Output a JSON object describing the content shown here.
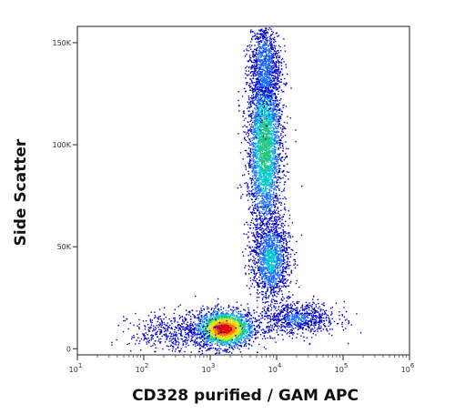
{
  "chart_data": {
    "type": "scatter",
    "subtype": "flow-cytometry-density-dot-plot",
    "xlabel": "CD328 purified / GAM APC",
    "ylabel": "Side Scatter",
    "x_scale": "log",
    "xlim": [
      10,
      1000000
    ],
    "ylim": [
      -3000,
      158000
    ],
    "x_ticks": [
      {
        "value": 10,
        "base": "10",
        "exp": "1"
      },
      {
        "value": 100,
        "base": "10",
        "exp": "2"
      },
      {
        "value": 1000,
        "base": "10",
        "exp": "3"
      },
      {
        "value": 10000,
        "base": "10",
        "exp": "4"
      },
      {
        "value": 100000,
        "base": "10",
        "exp": "5"
      },
      {
        "value": 1000000,
        "base": "10",
        "exp": "6"
      }
    ],
    "y_ticks": [
      {
        "value": 0,
        "label": "0"
      },
      {
        "value": 50000,
        "label": "50K"
      },
      {
        "value": 100000,
        "label": "100K"
      },
      {
        "value": 150000,
        "label": "150K"
      }
    ],
    "grid": false,
    "legend": "none",
    "density_colors": [
      "#0000cc",
      "#1f6fff",
      "#00c8d2",
      "#22c47a",
      "#b8ee22",
      "#ffd400",
      "#ff7a00",
      "#e80000"
    ],
    "populations": [
      {
        "x_center": 1600,
        "y_center": 10000,
        "x_spread_decades": 0.22,
        "y_spread": 4500,
        "count": 2200,
        "peak_density": 1.0
      },
      {
        "x_center": 6500,
        "y_center": 100000,
        "x_spread_decades": 0.13,
        "y_spread": 22000,
        "count": 3200,
        "peak_density": 0.45
      },
      {
        "x_center": 8000,
        "y_center": 44000,
        "x_spread_decades": 0.14,
        "y_spread": 10000,
        "count": 1400,
        "peak_density": 0.3
      },
      {
        "x_center": 6500,
        "y_center": 140000,
        "x_spread_decades": 0.12,
        "y_spread": 12000,
        "count": 900,
        "peak_density": 0.2
      },
      {
        "x_center": 20000,
        "y_center": 15000,
        "x_spread_decades": 0.3,
        "y_spread": 4000,
        "count": 800,
        "peak_density": 0.15
      },
      {
        "x_center": 300,
        "y_center": 8000,
        "x_spread_decades": 0.35,
        "y_spread": 5000,
        "count": 500,
        "peak_density": 0.1
      }
    ]
  }
}
